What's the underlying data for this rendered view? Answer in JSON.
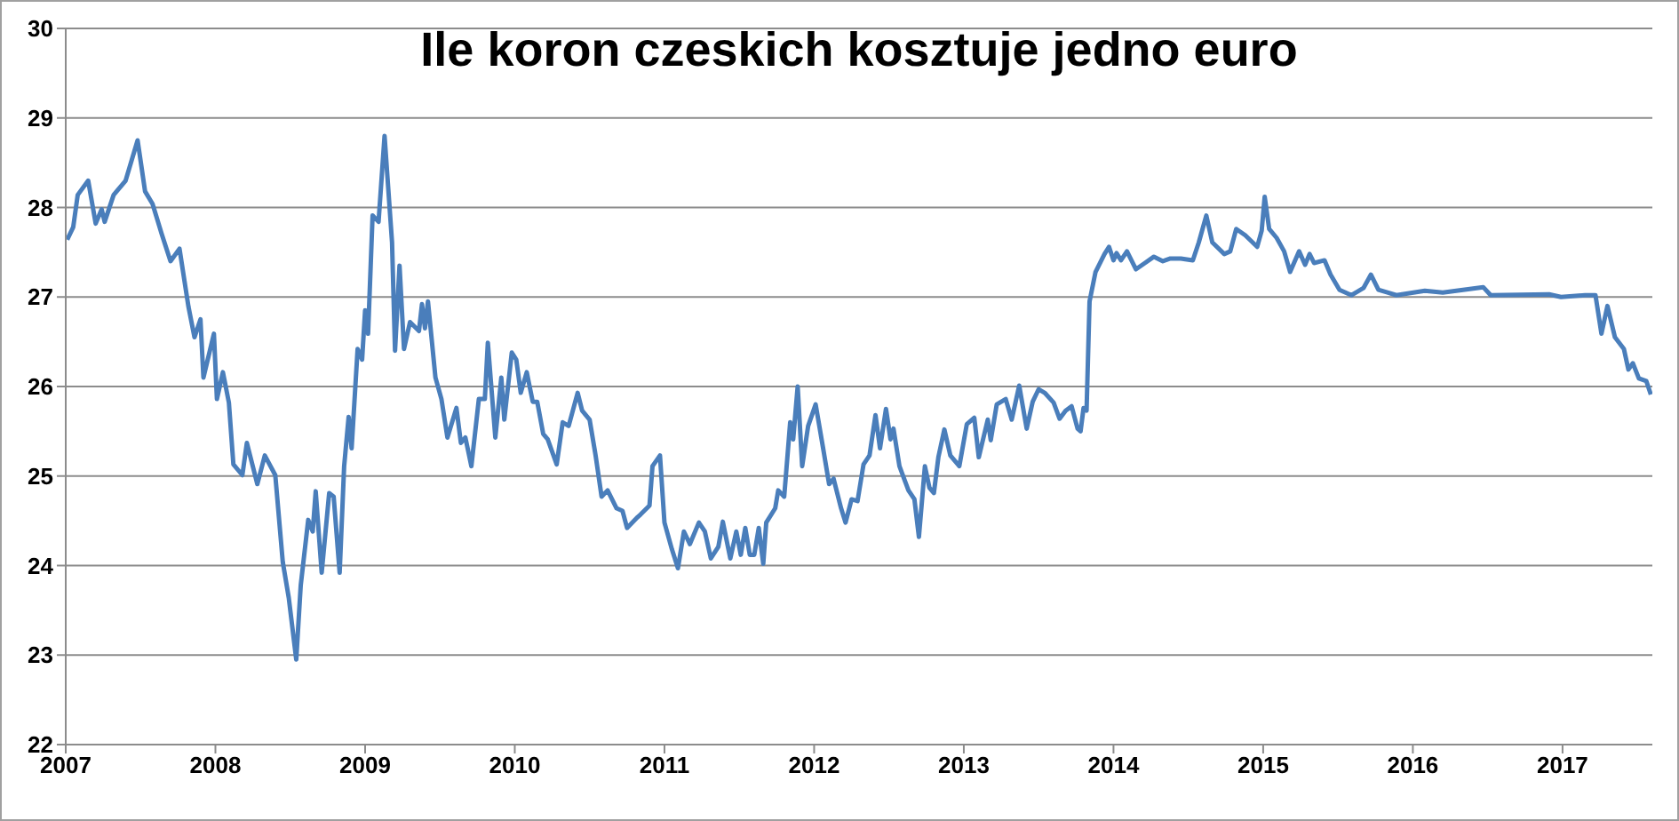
{
  "chart_data": {
    "type": "line",
    "title": "Ile koron czeskich kosztuje jedno euro",
    "x": [
      2007.01,
      2007.05,
      2007.08,
      2007.15,
      2007.2,
      2007.24,
      2007.26,
      2007.32,
      2007.4,
      2007.48,
      2007.53,
      2007.58,
      2007.64,
      2007.7,
      2007.76,
      2007.82,
      2007.86,
      2007.9,
      2007.92,
      2007.99,
      2008.01,
      2008.05,
      2008.09,
      2008.12,
      2008.18,
      2008.21,
      2008.28,
      2008.33,
      2008.4,
      2008.45,
      2008.49,
      2008.54,
      2008.57,
      2008.62,
      2008.65,
      2008.67,
      2008.71,
      2008.76,
      2008.79,
      2008.83,
      2008.86,
      2008.89,
      2008.91,
      2008.95,
      2008.98,
      2009.0,
      2009.02,
      2009.05,
      2009.09,
      2009.13,
      2009.18,
      2009.2,
      2009.23,
      2009.26,
      2009.3,
      2009.36,
      2009.38,
      2009.4,
      2009.42,
      2009.47,
      2009.51,
      2009.55,
      2009.61,
      2009.64,
      2009.67,
      2009.71,
      2009.76,
      2009.8,
      2009.82,
      2009.87,
      2009.91,
      2009.93,
      2009.98,
      2010.01,
      2010.04,
      2010.08,
      2010.12,
      2010.15,
      2010.19,
      2010.22,
      2010.28,
      2010.32,
      2010.36,
      2010.42,
      2010.45,
      2010.5,
      2010.54,
      2010.58,
      2010.62,
      2010.68,
      2010.72,
      2010.75,
      2010.82,
      2010.84,
      2010.9,
      2010.92,
      2010.97,
      2011.0,
      2011.05,
      2011.09,
      2011.13,
      2011.17,
      2011.23,
      2011.27,
      2011.31,
      2011.36,
      2011.39,
      2011.44,
      2011.48,
      2011.51,
      2011.54,
      2011.57,
      2011.6,
      2011.63,
      2011.66,
      2011.68,
      2011.74,
      2011.76,
      2011.8,
      2011.84,
      2011.86,
      2011.89,
      2011.92,
      2011.96,
      2012.01,
      2012.06,
      2012.1,
      2012.13,
      2012.18,
      2012.21,
      2012.25,
      2012.29,
      2012.33,
      2012.37,
      2012.41,
      2012.44,
      2012.48,
      2012.51,
      2012.53,
      2012.57,
      2012.63,
      2012.67,
      2012.7,
      2012.74,
      2012.77,
      2012.8,
      2012.83,
      2012.87,
      2012.91,
      2012.97,
      2013.02,
      2013.07,
      2013.1,
      2013.16,
      2013.18,
      2013.22,
      2013.28,
      2013.32,
      2013.37,
      2013.42,
      2013.46,
      2013.5,
      2013.54,
      2013.6,
      2013.64,
      2013.68,
      2013.72,
      2013.76,
      2013.78,
      2013.8,
      2013.82,
      2013.84,
      2013.88,
      2013.94,
      2013.97,
      2014.0,
      2014.02,
      2014.05,
      2014.09,
      2014.15,
      2014.21,
      2014.27,
      2014.33,
      2014.38,
      2014.45,
      2014.53,
      2014.57,
      2014.62,
      2014.66,
      2014.74,
      2014.78,
      2014.82,
      2014.88,
      2014.96,
      2014.99,
      2015.01,
      2015.04,
      2015.09,
      2015.14,
      2015.18,
      2015.24,
      2015.28,
      2015.31,
      2015.34,
      2015.41,
      2015.45,
      2015.51,
      2015.59,
      2015.67,
      2015.72,
      2015.77,
      2015.83,
      2015.89,
      2016.08,
      2016.2,
      2016.47,
      2016.52,
      2016.91,
      2016.99,
      2017.15,
      2017.22,
      2017.26,
      2017.3,
      2017.35,
      2017.41,
      2017.44,
      2017.47,
      2017.51,
      2017.56,
      2017.59
    ],
    "values": [
      27.64,
      27.78,
      28.14,
      28.3,
      27.82,
      27.98,
      27.84,
      28.14,
      28.3,
      28.75,
      28.18,
      28.04,
      27.71,
      27.4,
      27.54,
      26.89,
      26.55,
      26.75,
      26.1,
      26.59,
      25.86,
      26.16,
      25.82,
      25.13,
      25.01,
      25.37,
      24.91,
      25.23,
      25.01,
      24.04,
      23.64,
      22.95,
      23.78,
      24.51,
      24.38,
      24.83,
      23.92,
      24.81,
      24.77,
      23.92,
      25.11,
      25.66,
      25.31,
      26.42,
      26.3,
      26.85,
      26.59,
      27.91,
      27.84,
      28.8,
      27.61,
      26.4,
      27.35,
      26.42,
      26.72,
      26.62,
      26.92,
      26.65,
      26.95,
      26.1,
      25.86,
      25.43,
      25.76,
      25.37,
      25.43,
      25.11,
      25.86,
      25.86,
      26.49,
      25.43,
      26.1,
      25.63,
      26.38,
      26.3,
      25.93,
      26.16,
      25.83,
      25.83,
      25.47,
      25.41,
      25.13,
      25.6,
      25.56,
      25.93,
      25.73,
      25.63,
      25.23,
      24.77,
      24.84,
      24.64,
      24.61,
      24.42,
      24.54,
      24.57,
      24.67,
      25.11,
      25.23,
      24.48,
      24.18,
      23.97,
      24.38,
      24.24,
      24.48,
      24.38,
      24.08,
      24.21,
      24.49,
      24.08,
      24.38,
      24.12,
      24.42,
      24.12,
      24.12,
      24.42,
      24.02,
      24.48,
      24.64,
      24.84,
      24.77,
      25.6,
      25.41,
      26.0,
      25.11,
      25.56,
      25.8,
      25.31,
      24.91,
      24.97,
      24.64,
      24.48,
      24.74,
      24.72,
      25.13,
      25.23,
      25.68,
      25.31,
      25.75,
      25.41,
      25.53,
      25.11,
      24.84,
      24.74,
      24.32,
      25.11,
      24.87,
      24.81,
      25.21,
      25.52,
      25.23,
      25.11,
      25.58,
      25.65,
      25.21,
      25.63,
      25.4,
      25.8,
      25.86,
      25.63,
      26.01,
      25.53,
      25.83,
      25.97,
      25.93,
      25.82,
      25.64,
      25.73,
      25.78,
      25.53,
      25.5,
      25.76,
      25.73,
      26.95,
      27.28,
      27.48,
      27.56,
      27.41,
      27.49,
      27.41,
      27.51,
      27.31,
      27.38,
      27.45,
      27.4,
      27.43,
      27.43,
      27.41,
      27.61,
      27.91,
      27.61,
      27.48,
      27.51,
      27.76,
      27.69,
      27.56,
      27.74,
      28.12,
      27.76,
      27.66,
      27.51,
      27.28,
      27.51,
      27.36,
      27.48,
      27.38,
      27.41,
      27.25,
      27.08,
      27.02,
      27.1,
      27.25,
      27.08,
      27.05,
      27.02,
      27.07,
      27.05,
      27.11,
      27.02,
      27.03,
      27.0,
      27.02,
      27.02,
      26.59,
      26.9,
      26.55,
      26.42,
      26.19,
      26.26,
      26.09,
      26.06,
      25.91
    ],
    "color": "#4a7ebb",
    "xlim": [
      2007,
      2017.6
    ],
    "xticks": [
      2007,
      2008,
      2009,
      2010,
      2011,
      2012,
      2013,
      2014,
      2015,
      2016,
      2017
    ],
    "ylim": [
      22,
      30
    ],
    "yticks": [
      22,
      23,
      24,
      25,
      26,
      27,
      28,
      29,
      30
    ],
    "grid": "y",
    "legend": false,
    "marker": "none",
    "line_style": "solid"
  }
}
